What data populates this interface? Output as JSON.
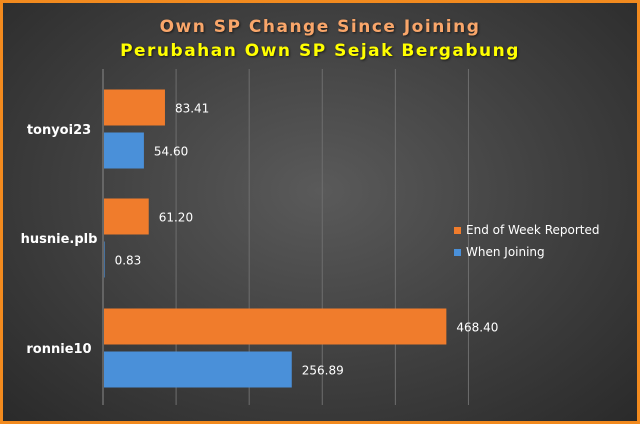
{
  "chart_data": {
    "type": "bar",
    "orientation": "horizontal",
    "title": "Own SP Change Since Joining",
    "subtitle": "Perubahan Own SP Sejak Bergabung",
    "categories": [
      "tonyoi23",
      "husnie.plb",
      "ronnie10"
    ],
    "series": [
      {
        "name": "End of Week Reported",
        "values": [
          83.41,
          61.2,
          468.4
        ],
        "labels": [
          "83.41",
          "61.20",
          "468.40"
        ],
        "color": "#f07c2c"
      },
      {
        "name": "When Joining",
        "values": [
          54.6,
          0.83,
          256.89
        ],
        "labels": [
          "54.60",
          "0.83",
          "256.89"
        ],
        "color": "#4a90d9"
      }
    ],
    "xlim": [
      0,
      600
    ],
    "grid": true,
    "legend_position": "right"
  }
}
